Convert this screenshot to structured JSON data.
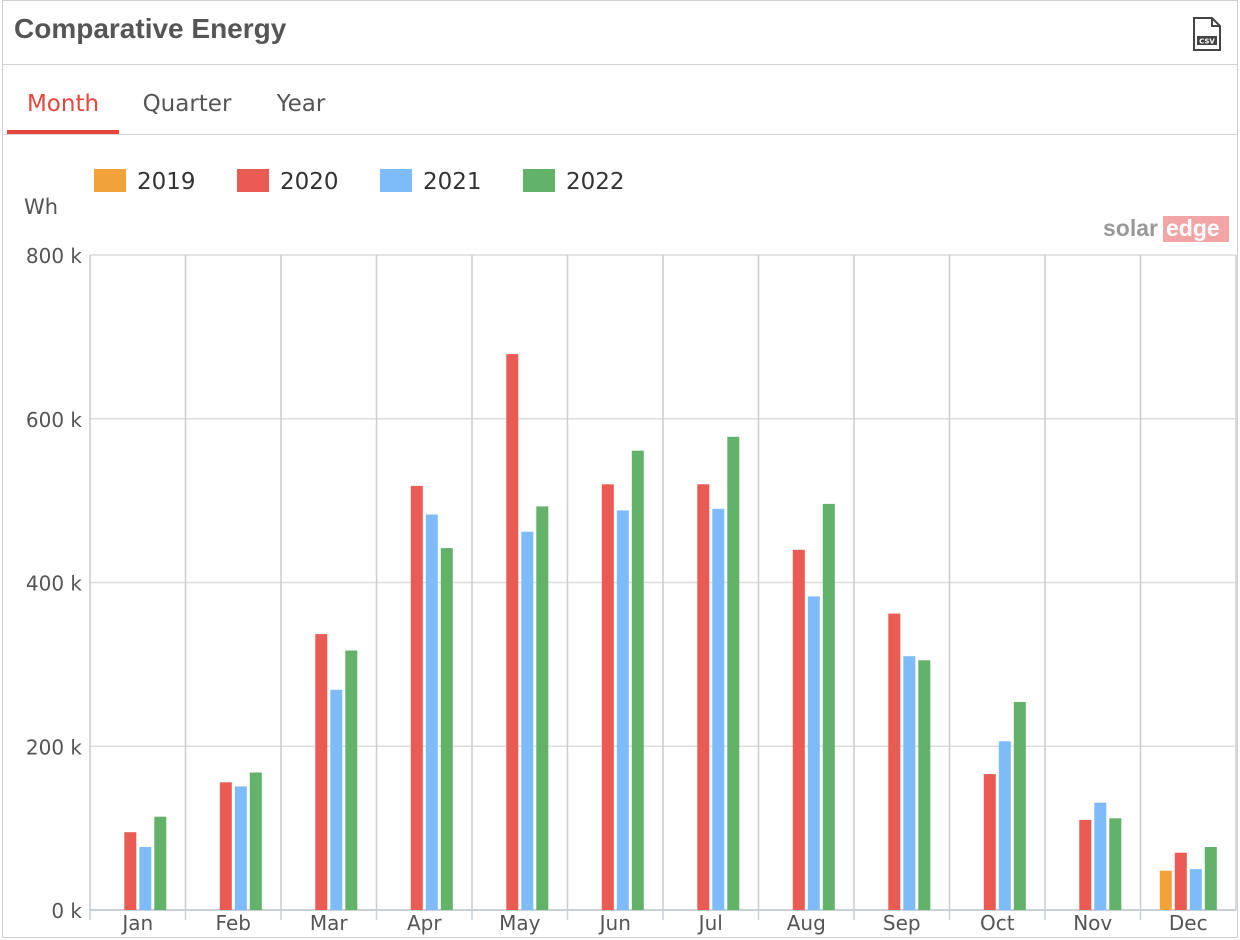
{
  "panel": {
    "title": "Comparative Energy",
    "csv_icon": "csv-file-icon",
    "csv_icon_text": "CSV"
  },
  "tabs": [
    {
      "label": "Month",
      "active": true
    },
    {
      "label": "Quarter",
      "active": false
    },
    {
      "label": "Year",
      "active": false
    }
  ],
  "watermark": {
    "part1": "solar",
    "part2": "edge"
  },
  "colors": {
    "accent": "#e8453c",
    "2019": "#f2a23a",
    "2020": "#e95b53",
    "2021": "#7dbcf9",
    "2022": "#62b26a"
  },
  "chart_data": {
    "type": "bar",
    "ylabel": "Wh",
    "ylim": [
      0,
      800
    ],
    "yticks": [
      0,
      200,
      400,
      600,
      800
    ],
    "ytick_labels": [
      "0 k",
      "200 k",
      "400 k",
      "600 k",
      "800 k"
    ],
    "categories": [
      "Jan",
      "Feb",
      "Mar",
      "Apr",
      "May",
      "Jun",
      "Jul",
      "Aug",
      "Sep",
      "Oct",
      "Nov",
      "Dec"
    ],
    "legend_position": "top-left",
    "grid": true,
    "series": [
      {
        "name": "2019",
        "color": "#f2a23a",
        "values": [
          null,
          null,
          null,
          null,
          null,
          null,
          null,
          null,
          null,
          null,
          null,
          48
        ]
      },
      {
        "name": "2020",
        "color": "#e95b53",
        "values": [
          95,
          156,
          337,
          518,
          679,
          520,
          520,
          440,
          362,
          166,
          110,
          70
        ]
      },
      {
        "name": "2021",
        "color": "#7dbcf9",
        "values": [
          77,
          151,
          269,
          483,
          462,
          488,
          490,
          383,
          310,
          206,
          131,
          50
        ]
      },
      {
        "name": "2022",
        "color": "#62b26a",
        "values": [
          114,
          168,
          317,
          442,
          493,
          561,
          578,
          496,
          305,
          254,
          112,
          77
        ]
      }
    ]
  }
}
